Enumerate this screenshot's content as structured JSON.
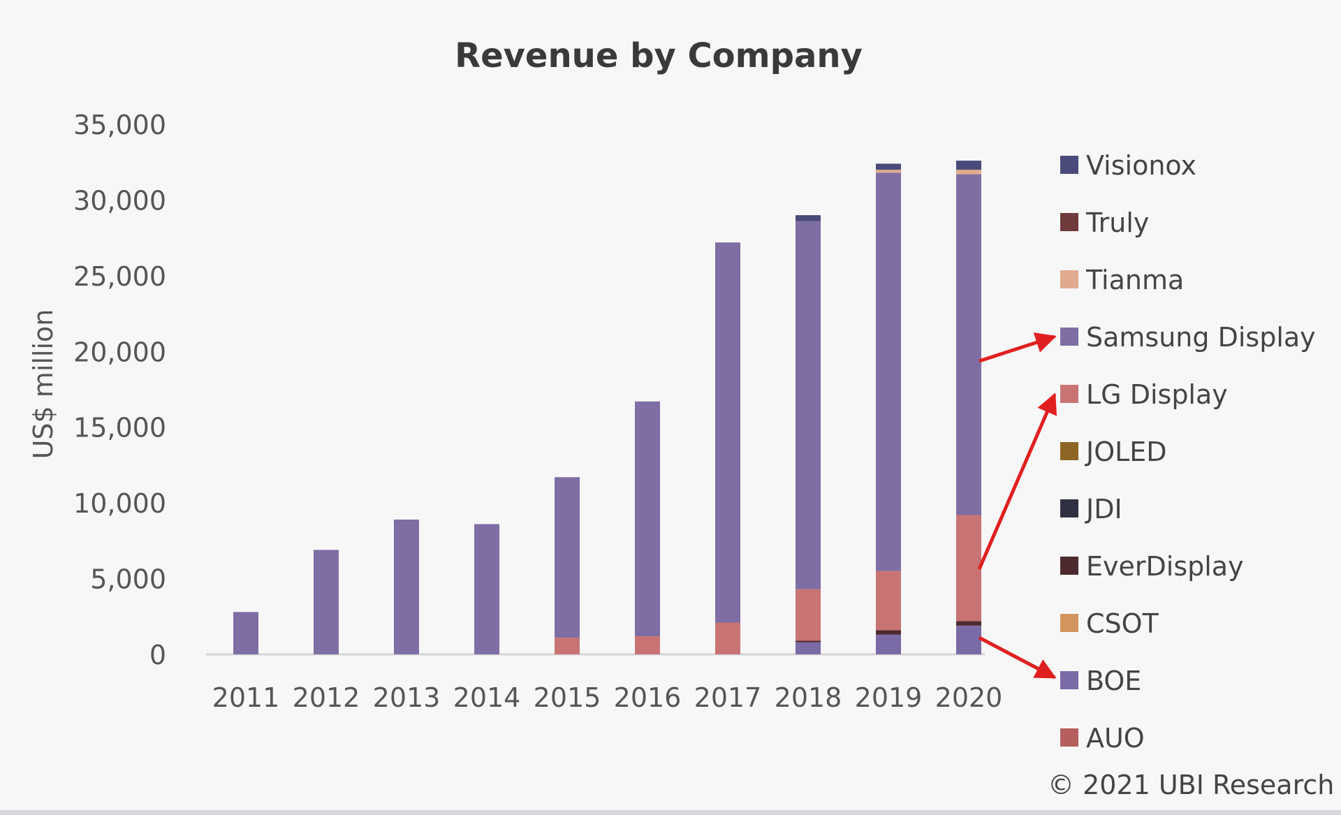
{
  "chart_data": {
    "type": "bar",
    "stacked": true,
    "title": "Revenue by Company",
    "ylabel": "US$ million",
    "xlabel": "",
    "ylim": [
      0,
      35000
    ],
    "yticks": [
      0,
      5000,
      10000,
      15000,
      20000,
      25000,
      30000,
      35000
    ],
    "ytick_labels": [
      "0",
      "5,000",
      "10,000",
      "15,000",
      "20,000",
      "25,000",
      "30,000",
      "35,000"
    ],
    "categories": [
      "2011",
      "2012",
      "2013",
      "2014",
      "2015",
      "2016",
      "2017",
      "2018",
      "2019",
      "2020"
    ],
    "legend_position": "right",
    "series": [
      {
        "name": "AUO",
        "color": "#b5605f",
        "values": [
          0,
          0,
          0,
          0,
          0,
          0,
          0,
          0,
          0,
          0
        ]
      },
      {
        "name": "BOE",
        "color": "#7a6aa6",
        "values": [
          0,
          0,
          0,
          0,
          0,
          0,
          0,
          800,
          1300,
          1900
        ]
      },
      {
        "name": "CSOT",
        "color": "#d4945e",
        "values": [
          0,
          0,
          0,
          0,
          0,
          0,
          0,
          0,
          0,
          0
        ]
      },
      {
        "name": "EverDisplay",
        "color": "#4d2a2e",
        "values": [
          0,
          0,
          0,
          0,
          0,
          0,
          0,
          100,
          300,
          300
        ]
      },
      {
        "name": "JDI",
        "color": "#2f3142",
        "values": [
          0,
          0,
          0,
          0,
          0,
          0,
          0,
          0,
          0,
          0
        ]
      },
      {
        "name": "JOLED",
        "color": "#8f6526",
        "values": [
          0,
          0,
          0,
          0,
          0,
          0,
          0,
          0,
          0,
          0
        ]
      },
      {
        "name": "LG Display",
        "color": "#c97474",
        "values": [
          0,
          0,
          0,
          0,
          1100,
          1200,
          2100,
          3400,
          3900,
          7000
        ]
      },
      {
        "name": "Samsung Display",
        "color": "#7e6ea3",
        "values": [
          2800,
          6900,
          8900,
          8600,
          10600,
          15500,
          25100,
          24300,
          26300,
          22500
        ]
      },
      {
        "name": "Tianma",
        "color": "#e0aa8f",
        "values": [
          0,
          0,
          0,
          0,
          0,
          0,
          0,
          0,
          200,
          300
        ]
      },
      {
        "name": "Truly",
        "color": "#6e3a3c",
        "values": [
          0,
          0,
          0,
          0,
          0,
          0,
          0,
          0,
          0,
          0
        ]
      },
      {
        "name": "Visionox",
        "color": "#4a4b7a",
        "values": [
          0,
          0,
          0,
          0,
          0,
          0,
          0,
          400,
          400,
          600
        ]
      }
    ],
    "legend_order": [
      "Visionox",
      "Truly",
      "Tianma",
      "Samsung Display",
      "LG Display",
      "JOLED",
      "JDI",
      "EverDisplay",
      "CSOT",
      "BOE",
      "AUO"
    ],
    "copyright": "© 2021 UBI Research",
    "annotation_color": "#e02020"
  }
}
